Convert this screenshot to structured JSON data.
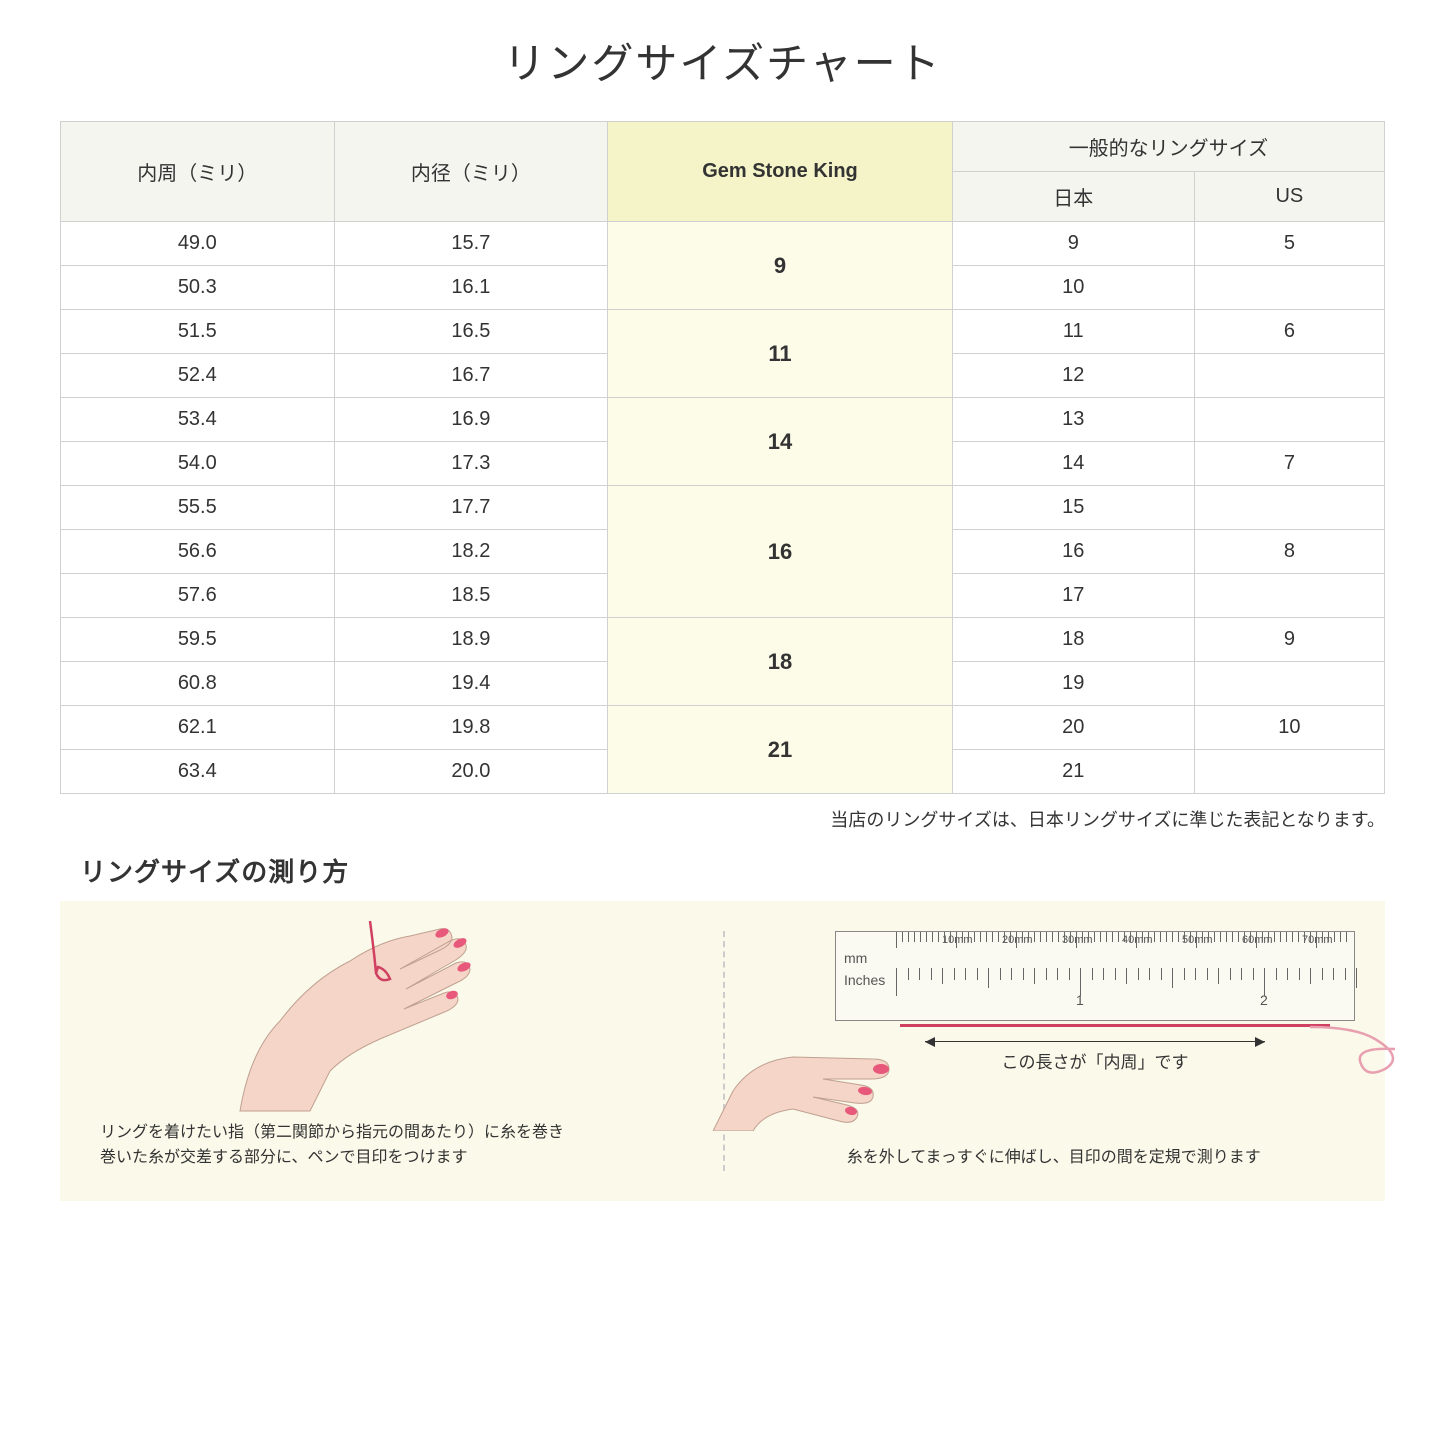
{
  "title": "リングサイズチャート",
  "headers": {
    "circumference": "内周（ミリ）",
    "diameter": "内径（ミリ）",
    "gsk": "Gem Stone King",
    "general": "一般的なリングサイズ",
    "japan": "日本",
    "us": "US"
  },
  "rows": [
    {
      "circ": "49.0",
      "dia": "15.7",
      "jp": "9",
      "us": "5"
    },
    {
      "circ": "50.3",
      "dia": "16.1",
      "jp": "10",
      "us": ""
    },
    {
      "circ": "51.5",
      "dia": "16.5",
      "jp": "11",
      "us": "6"
    },
    {
      "circ": "52.4",
      "dia": "16.7",
      "jp": "12",
      "us": ""
    },
    {
      "circ": "53.4",
      "dia": "16.9",
      "jp": "13",
      "us": ""
    },
    {
      "circ": "54.0",
      "dia": "17.3",
      "jp": "14",
      "us": "7"
    },
    {
      "circ": "55.5",
      "dia": "17.7",
      "jp": "15",
      "us": ""
    },
    {
      "circ": "56.6",
      "dia": "18.2",
      "jp": "16",
      "us": "8"
    },
    {
      "circ": "57.6",
      "dia": "18.5",
      "jp": "17",
      "us": ""
    },
    {
      "circ": "59.5",
      "dia": "18.9",
      "jp": "18",
      "us": "9"
    },
    {
      "circ": "60.8",
      "dia": "19.4",
      "jp": "19",
      "us": ""
    },
    {
      "circ": "62.1",
      "dia": "19.8",
      "jp": "20",
      "us": "10"
    },
    {
      "circ": "63.4",
      "dia": "20.0",
      "jp": "21",
      "us": ""
    }
  ],
  "gsk_groups": [
    {
      "label": "9",
      "span": 2
    },
    {
      "label": "11",
      "span": 2
    },
    {
      "label": "14",
      "span": 2
    },
    {
      "label": "16",
      "span": 3
    },
    {
      "label": "18",
      "span": 2
    },
    {
      "label": "21",
      "span": 2
    }
  ],
  "note": "当店のリングサイズは、日本リングサイズに準じた表記となります。",
  "howto": {
    "title": "リングサイズの測り方",
    "left_caption": "リングを着けたい指（第二関節から指元の間あたり）に糸を巻き\n巻いた糸が交差する部分に、ペンで目印をつけます",
    "right_caption": "糸を外してまっすぐに伸ばし、目印の間を定規で測ります",
    "measure_label": "この長さが「内周」です",
    "ruler_mm_label": "mm",
    "ruler_in_label": "Inches",
    "ruler_mm_marks": [
      "10mm",
      "20mm",
      "30mm",
      "40mm",
      "50mm",
      "60mm",
      "70mm"
    ],
    "ruler_in_marks": [
      "1",
      "2"
    ]
  },
  "colors": {
    "header_bg": "#f5f5f0",
    "highlight_bg": "#f4f4c8",
    "gsk_cell_bg": "#fcfce8",
    "howto_bg": "#faf9ea",
    "skin": "#f5d5c8",
    "nail": "#e8587a",
    "thread": "#d04060",
    "border": "#d0d0d0"
  }
}
